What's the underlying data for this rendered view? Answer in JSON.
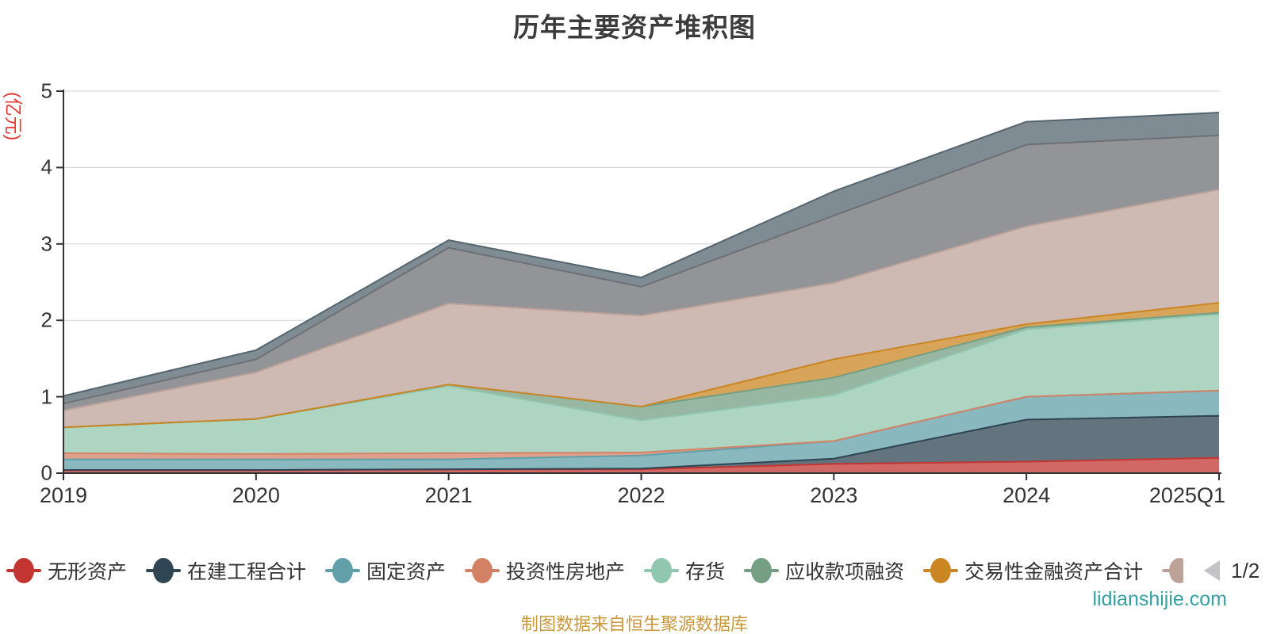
{
  "title": "历年主要资产堆积图",
  "y_axis": {
    "name": "(亿元)",
    "name_color": "#e53935",
    "tick_labels": [
      "0",
      "1",
      "2",
      "3",
      "4",
      "5"
    ],
    "min": 0,
    "max": 5
  },
  "x_axis": {
    "labels": [
      "2019",
      "2020",
      "2021",
      "2022",
      "2023",
      "2024",
      "2025Q1"
    ]
  },
  "legend": {
    "pagination": {
      "label": "1/2",
      "prev_icon": "left-triangle-icon",
      "next_icon": "right-triangle-icon"
    },
    "visible_count": 7,
    "clipped_next_item_color": "#bda29a"
  },
  "footer": {
    "source_note": "制图数据来自恒生聚源数据库",
    "color": "#c9973c"
  },
  "watermark": {
    "text": "lidianshijie.com",
    "color": "#34a0a0"
  },
  "chart_data": {
    "type": "area",
    "stacked": true,
    "grid": true,
    "legend_position": "bottom",
    "area_opacity": 0.75,
    "ylim": [
      0,
      5
    ],
    "ylabel": "(亿元)",
    "title": "历年主要资产堆积图",
    "categories": [
      "2019",
      "2020",
      "2021",
      "2022",
      "2023",
      "2024",
      "2025Q1"
    ],
    "series": [
      {
        "name": "无形资产",
        "color": "#c23531",
        "dotted": false,
        "legend_page": 1,
        "values": [
          0.04,
          0.04,
          0.05,
          0.05,
          0.12,
          0.15,
          0.2
        ]
      },
      {
        "name": "在建工程合计",
        "color": "#2f4554",
        "dotted": false,
        "legend_page": 1,
        "values": [
          0.0,
          0.0,
          0.0,
          0.01,
          0.07,
          0.55,
          0.55
        ]
      },
      {
        "name": "固定资产",
        "color": "#61a0a8",
        "dotted": false,
        "legend_page": 1,
        "values": [
          0.14,
          0.14,
          0.13,
          0.17,
          0.23,
          0.3,
          0.33
        ]
      },
      {
        "name": "投资性房地产",
        "color": "#d48265",
        "dotted": true,
        "legend_page": 1,
        "values": [
          0.08,
          0.07,
          0.08,
          0.04,
          0.0,
          0.0,
          0.0
        ]
      },
      {
        "name": "存货",
        "color": "#91c7ae",
        "dotted": true,
        "legend_page": 1,
        "values": [
          0.34,
          0.46,
          0.88,
          0.42,
          0.6,
          0.88,
          1.0
        ]
      },
      {
        "name": "应收款项融资",
        "color": "#749f83",
        "dotted": true,
        "legend_page": 1,
        "values": [
          0.0,
          0.0,
          0.02,
          0.18,
          0.23,
          0.03,
          0.02
        ]
      },
      {
        "name": "交易性金融资产合计",
        "color": "#ca8622",
        "dotted": false,
        "legend_page": 1,
        "values": [
          0.0,
          0.0,
          0.0,
          0.0,
          0.24,
          0.04,
          0.13
        ]
      },
      {
        "name": "",
        "color": "#bda29a",
        "dotted": true,
        "legend_page": 2,
        "values": [
          0.22,
          0.61,
          1.06,
          1.19,
          1.0,
          1.28,
          1.48
        ]
      },
      {
        "name": "",
        "color": "#6e7074",
        "dotted": false,
        "legend_page": 2,
        "values": [
          0.09,
          0.17,
          0.73,
          0.38,
          0.88,
          1.07,
          0.71
        ]
      },
      {
        "name": "",
        "color": "#546570",
        "dotted": false,
        "legend_page": 2,
        "values": [
          0.1,
          0.12,
          0.1,
          0.12,
          0.32,
          0.3,
          0.3
        ]
      }
    ],
    "note": "系列8-10的图例在第2页（1/2分页，未显示名称）"
  }
}
